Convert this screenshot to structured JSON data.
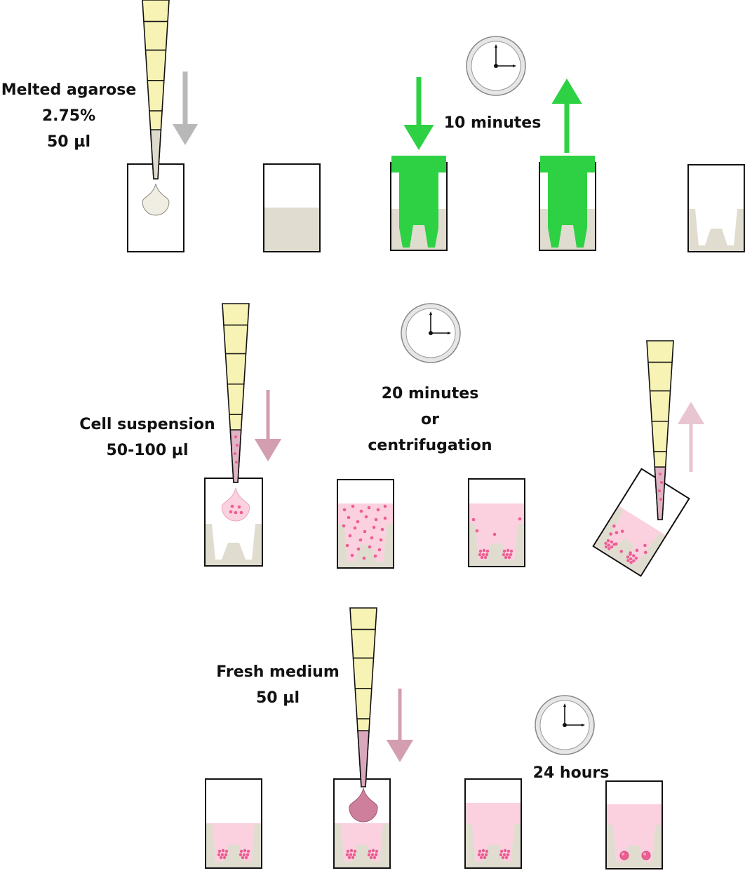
{
  "colors": {
    "agarose": "#e0ddd0",
    "drop_agarose": "#f0ede2",
    "stamp": "#2dd143",
    "medium": "#fbd0df",
    "cell": "#ee5d92",
    "arrow_gray": "#b8b8b8",
    "arrow_pink": "#d39eb0",
    "arrow_pink_light": "#e8c5d1",
    "tip_yellow": "#f6f3b5",
    "tip_gray": "#dedbcd",
    "tip_pink": "#dfb4c5",
    "tip_mauve": "#d9a8bd",
    "drop_mauve": "#cd7f9b"
  },
  "labels": {
    "agarose": [
      "Melted agarose",
      "2.75%",
      "50 µl"
    ],
    "ten_min": "10 minutes",
    "cells": [
      "Cell suspension",
      "50-100 µl"
    ],
    "wait": [
      "20 minutes",
      "or",
      "centrifugation"
    ],
    "medium": [
      "Fresh medium",
      "50 µl"
    ],
    "day": "24 hours"
  },
  "icons": [
    "pipette-tip-icon",
    "clock-icon",
    "arrow-down-icon",
    "arrow-up-icon",
    "stamp-icon",
    "well-icon",
    "droplet-icon"
  ]
}
